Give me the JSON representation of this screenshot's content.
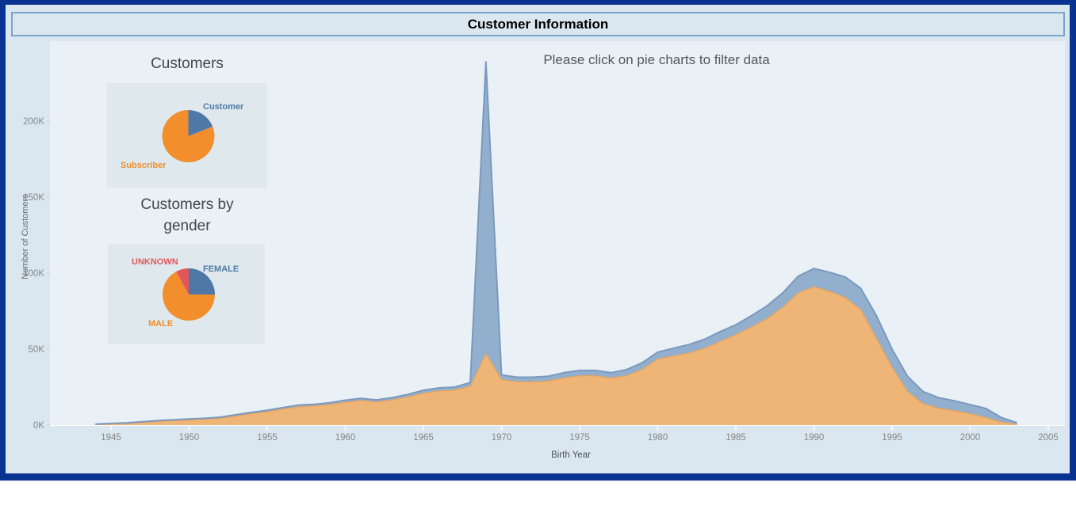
{
  "window": {
    "title": "Customer Information"
  },
  "hint": "Please click on pie charts to filter data",
  "colors": {
    "frame_border": "#0a3391",
    "background": "#dbe7f0",
    "plot_panel": "#e9f0f6",
    "pie_tile": "#dfe9ed",
    "titlebar_border": "#7aa4ca",
    "blue": "#4e79a7",
    "orange": "#f28e2c",
    "red": "#e15759",
    "area_blue": "#92afce",
    "area_orange": "#eeb577"
  },
  "chart_data": [
    {
      "type": "pie",
      "title": "Customers",
      "unit": "percent share of customers",
      "slices": [
        {
          "label": "Customer",
          "percent": 19,
          "color": "#4e79a7"
        },
        {
          "label": "Subscriber",
          "percent": 81,
          "color": "#f28e2c"
        }
      ]
    },
    {
      "type": "pie",
      "title": "Customers by gender",
      "title_lines": [
        "Customers by",
        "gender"
      ],
      "unit": "percent share of customers",
      "slices": [
        {
          "label": "FEMALE",
          "percent": 25,
          "color": "#4e79a7"
        },
        {
          "label": "MALE",
          "percent": 67,
          "color": "#f28e2c"
        },
        {
          "label": "UNKNOWN",
          "percent": 8,
          "color": "#e15759"
        }
      ]
    },
    {
      "type": "area",
      "stacked": true,
      "title": "",
      "xlabel": "Birth Year",
      "ylabel": "Number of Customers",
      "unit": "thousands of customers (K)",
      "xlim": [
        1944,
        2005
      ],
      "ylim": [
        0,
        240
      ],
      "grid": false,
      "legend": "none",
      "x_ticks": [
        1945,
        1950,
        1955,
        1960,
        1965,
        1970,
        1975,
        1980,
        1985,
        1990,
        1995,
        2000,
        2005
      ],
      "x_tick_labels": [
        "1945",
        "1950",
        "1955",
        "1960",
        "1965",
        "1970",
        "1975",
        "1980",
        "1985",
        "1990",
        "1995",
        "2000",
        "2005"
      ],
      "y_ticks": [
        0,
        50,
        100,
        150,
        200
      ],
      "y_tick_labels": [
        "0K",
        "50K",
        "100K",
        "150K",
        "200K"
      ],
      "x": [
        1944,
        1945,
        1946,
        1947,
        1948,
        1949,
        1950,
        1951,
        1952,
        1953,
        1954,
        1955,
        1956,
        1957,
        1958,
        1959,
        1960,
        1961,
        1962,
        1963,
        1964,
        1965,
        1966,
        1967,
        1968,
        1969,
        1970,
        1971,
        1972,
        1973,
        1974,
        1975,
        1976,
        1977,
        1978,
        1979,
        1980,
        1981,
        1982,
        1983,
        1984,
        1985,
        1986,
        1987,
        1988,
        1989,
        1990,
        1991,
        1992,
        1993,
        1994,
        1995,
        1996,
        1997,
        1998,
        1999,
        2000,
        2001,
        2002,
        2003
      ],
      "series": [
        {
          "name": "Subscriber",
          "color": "#eeb577",
          "edge_color": "#e4a45f",
          "values": [
            0.5,
            0.8,
            1.2,
            1.8,
            2.5,
            3,
            3.4,
            3.9,
            4.5,
            6,
            7.5,
            8.8,
            10.5,
            12,
            12.6,
            13.5,
            15,
            16.2,
            15.2,
            16.5,
            18.5,
            21,
            22.5,
            23,
            25.5,
            47,
            30,
            28.5,
            28.5,
            29,
            31,
            32.5,
            32.5,
            31,
            32.5,
            36.5,
            43.5,
            45.5,
            47.5,
            50.5,
            55,
            59.5,
            64.5,
            70,
            77.5,
            87,
            91,
            88,
            84,
            76,
            57,
            38,
            22,
            14,
            11,
            9.5,
            7.5,
            5,
            2,
            0.5
          ]
        },
        {
          "name": "Customer",
          "color": "#92afce",
          "edge_color": "#7b99bd",
          "values": [
            0.2,
            0.3,
            0.3,
            0.4,
            0.5,
            0.5,
            0.6,
            0.6,
            0.7,
            0.8,
            0.9,
            1,
            1,
            1.1,
            1.1,
            1.2,
            1.4,
            1.4,
            1.4,
            1.5,
            1.7,
            1.9,
            2,
            2,
            2.5,
            192,
            3,
            3,
            3,
            3.2,
            3.5,
            3.5,
            3.5,
            3.5,
            4,
            4.5,
            4.5,
            5,
            5.5,
            6,
            6.5,
            6.5,
            7.5,
            8.5,
            9.5,
            11,
            12,
            12.5,
            13.5,
            14,
            15,
            12,
            10,
            8,
            7,
            6.5,
            6,
            6,
            3,
            1
          ]
        }
      ],
      "annotations": [
        "Large spike of Customer-type records at birth year 1969 reaching about 239K total"
      ]
    }
  ]
}
